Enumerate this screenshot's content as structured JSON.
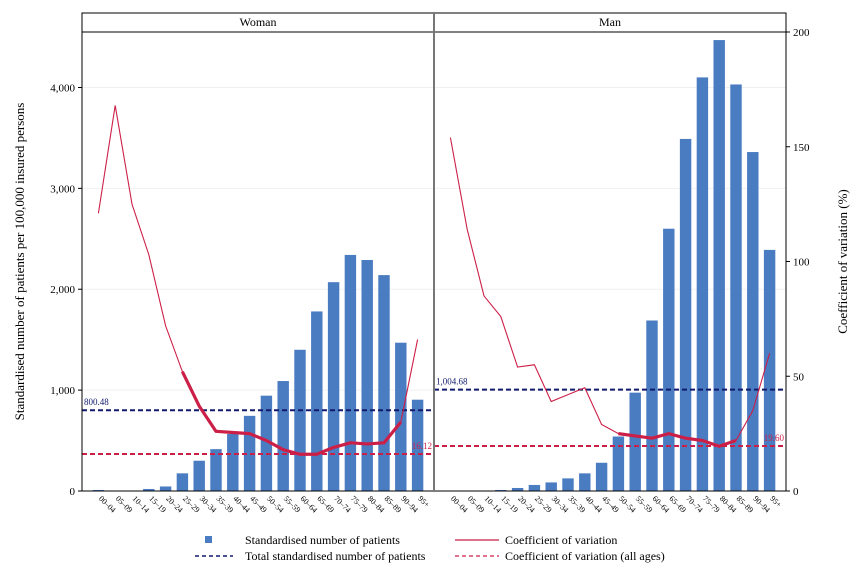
{
  "chart_data": {
    "type": "bar",
    "panels": [
      {
        "title": "Woman",
        "bars": [
          10,
          5,
          5,
          20,
          45,
          175,
          300,
          415,
          565,
          745,
          945,
          1090,
          1400,
          1780,
          2070,
          2340,
          2290,
          2140,
          1470,
          905
        ],
        "cv_line": [
          121,
          168,
          125,
          103,
          72,
          52,
          37,
          26,
          25.5,
          25,
          22,
          18,
          16,
          16,
          19,
          21,
          20.5,
          21,
          30,
          66
        ],
        "cv_thick_from": 5,
        "cv_thick_to": 18,
        "total_ref": 800.48,
        "total_ref_label": "800.48",
        "cv_ref": 16.12,
        "cv_ref_label": "16.12"
      },
      {
        "title": "Man",
        "bars": [
          5,
          5,
          5,
          10,
          30,
          60,
          85,
          125,
          175,
          280,
          540,
          975,
          1690,
          2600,
          3490,
          4100,
          4470,
          4030,
          3360,
          2390
        ],
        "cv_line": [
          154,
          114,
          85,
          76,
          54,
          55,
          39,
          42,
          45,
          29,
          25,
          24,
          23,
          25,
          23,
          22,
          19.5,
          22,
          35,
          60
        ],
        "cv_thick_from": 10,
        "cv_thick_to": 17,
        "total_ref": 1004.68,
        "total_ref_label": "1,004.68",
        "cv_ref": 19.6,
        "cv_ref_label": "19.60"
      }
    ],
    "categories": [
      "00–04",
      "05–09",
      "10–14",
      "15–19",
      "20–24",
      "25–29",
      "30–34",
      "35–39",
      "40–44",
      "45–49",
      "50–54",
      "55–59",
      "60–64",
      "65–69",
      "70–74",
      "75–79",
      "80–84",
      "85–89",
      "90–94",
      "95+"
    ],
    "ylabel": "Standardised number of patients per 100,000 insured persons",
    "y2label": "Coefficient of variation (%)",
    "ylim": [
      0,
      4550
    ],
    "y2lim": [
      0,
      200
    ],
    "yticks": [
      0,
      1000,
      2000,
      3000,
      4000
    ],
    "ytick_labels": [
      "0",
      "1,000",
      "2,000",
      "3,000",
      "4,000"
    ],
    "y2ticks": [
      0,
      50,
      100,
      150,
      200
    ],
    "y2tick_labels": [
      "0",
      "50",
      "100",
      "150",
      "200"
    ],
    "legend": [
      {
        "label": "Standardised number of patients",
        "kind": "square"
      },
      {
        "label": "Coefficient of variation",
        "kind": "line"
      },
      {
        "label": "Total standardised number of patients",
        "kind": "navy-dash"
      },
      {
        "label": "Coefficient of variation (all ages)",
        "kind": "red-dash"
      }
    ],
    "colors": {
      "bar": "#4a7cc2",
      "cv_line": "#cc1f48",
      "total_ref": "#111a6b",
      "cv_ref": "#cc1f48"
    }
  }
}
